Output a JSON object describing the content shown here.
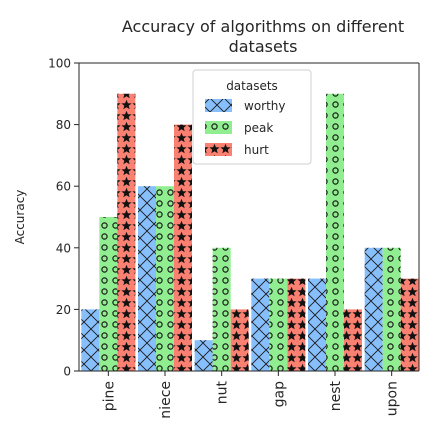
{
  "chart_data": {
    "type": "bar",
    "title_lines": [
      "Accuracy of algorithms on different",
      "datasets"
    ],
    "xlabel": "",
    "ylabel": "Accuracy",
    "categories": [
      "pine",
      "niece",
      "nut",
      "gap",
      "nest",
      "upon"
    ],
    "ylim": [
      0,
      100
    ],
    "yticks": [
      "0",
      "20",
      "40",
      "60",
      "80",
      "100"
    ],
    "grid": false,
    "legend": {
      "title": "datasets",
      "placement": "top-center"
    },
    "series": [
      {
        "name": "worthy",
        "values": [
          20,
          60,
          10,
          30,
          30,
          40
        ],
        "color": "#87bffc",
        "pattern": "cross-hatch"
      },
      {
        "name": "peak",
        "values": [
          50,
          60,
          40,
          30,
          90,
          40
        ],
        "color": "#90ee90",
        "pattern": "circles"
      },
      {
        "name": "hurt",
        "values": [
          90,
          80,
          20,
          30,
          20,
          30
        ],
        "color": "#fa8072",
        "pattern": "stars"
      }
    ]
  }
}
